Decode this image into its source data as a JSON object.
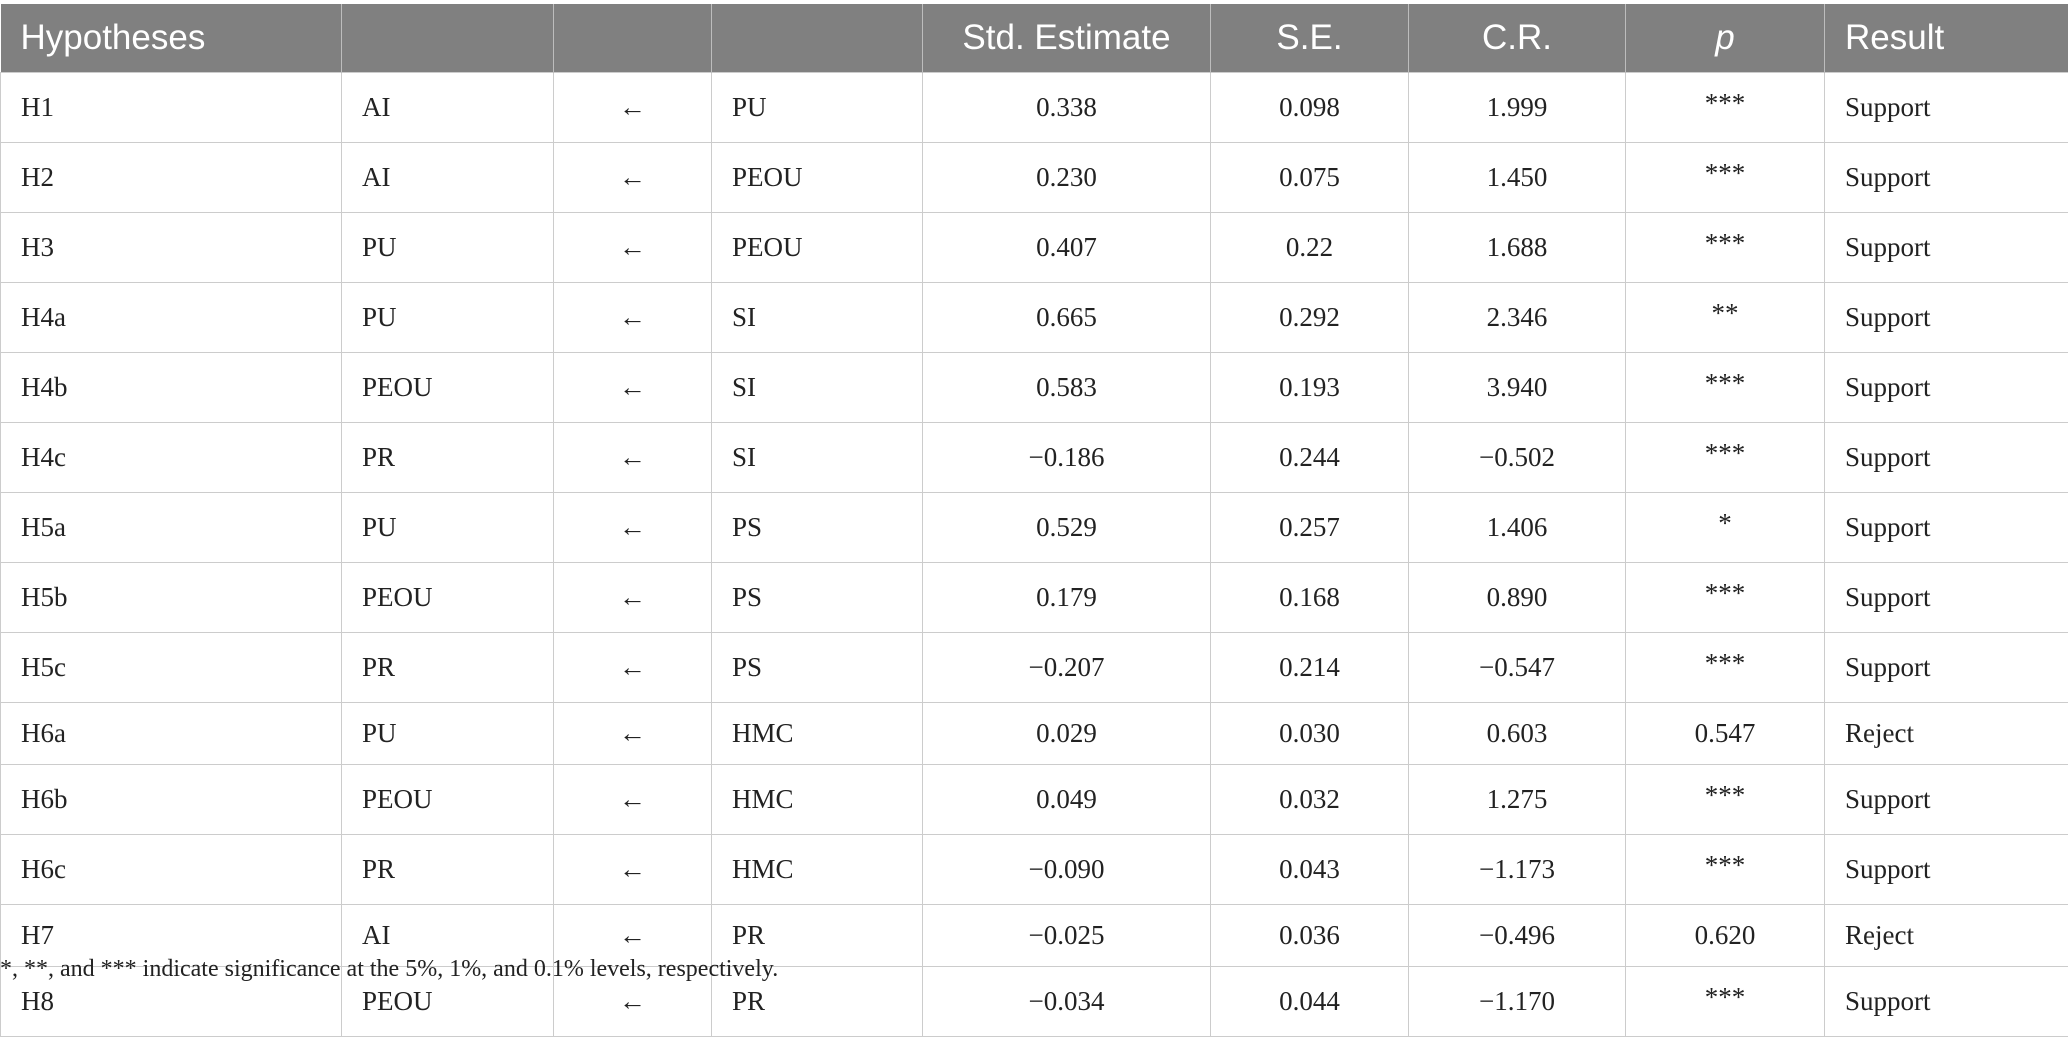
{
  "table": {
    "headers": {
      "hypotheses": "Hypotheses",
      "std_estimate": "Std. Estimate",
      "se": "S.E.",
      "cr": "C.R.",
      "p": "p",
      "result": "Result"
    },
    "rows": [
      {
        "h": "H1",
        "dep": "AI",
        "arrow": "←",
        "ind": "PU",
        "est": "0.338",
        "se": "0.098",
        "cr": "1.999",
        "p": "***",
        "result": "Support"
      },
      {
        "h": "H2",
        "dep": "AI",
        "arrow": "←",
        "ind": "PEOU",
        "est": "0.230",
        "se": "0.075",
        "cr": "1.450",
        "p": "***",
        "result": "Support"
      },
      {
        "h": "H3",
        "dep": "PU",
        "arrow": "←",
        "ind": "PEOU",
        "est": "0.407",
        "se": "0.22",
        "cr": "1.688",
        "p": "***",
        "result": "Support"
      },
      {
        "h": "H4a",
        "dep": "PU",
        "arrow": "←",
        "ind": "SI",
        "est": "0.665",
        "se": "0.292",
        "cr": "2.346",
        "p": "**",
        "result": "Support"
      },
      {
        "h": "H4b",
        "dep": "PEOU",
        "arrow": "←",
        "ind": "SI",
        "est": "0.583",
        "se": "0.193",
        "cr": "3.940",
        "p": "***",
        "result": "Support"
      },
      {
        "h": "H4c",
        "dep": "PR",
        "arrow": "←",
        "ind": "SI",
        "est": "−0.186",
        "se": "0.244",
        "cr": "−0.502",
        "p": "***",
        "result": "Support"
      },
      {
        "h": "H5a",
        "dep": "PU",
        "arrow": "←",
        "ind": "PS",
        "est": "0.529",
        "se": "0.257",
        "cr": "1.406",
        "p": "*",
        "result": "Support"
      },
      {
        "h": "H5b",
        "dep": "PEOU",
        "arrow": "←",
        "ind": "PS",
        "est": "0.179",
        "se": "0.168",
        "cr": "0.890",
        "p": "***",
        "result": "Support"
      },
      {
        "h": "H5c",
        "dep": "PR",
        "arrow": "←",
        "ind": "PS",
        "est": "−0.207",
        "se": "0.214",
        "cr": "−0.547",
        "p": "***",
        "result": "Support"
      },
      {
        "h": "H6a",
        "dep": "PU",
        "arrow": "←",
        "ind": "HMC",
        "est": "0.029",
        "se": "0.030",
        "cr": "0.603",
        "p": "0.547",
        "result": "Reject"
      },
      {
        "h": "H6b",
        "dep": "PEOU",
        "arrow": "←",
        "ind": "HMC",
        "est": "0.049",
        "se": "0.032",
        "cr": "1.275",
        "p": "***",
        "result": "Support"
      },
      {
        "h": "H6c",
        "dep": "PR",
        "arrow": "←",
        "ind": "HMC",
        "est": "−0.090",
        "se": "0.043",
        "cr": "−1.173",
        "p": "***",
        "result": "Support"
      },
      {
        "h": "H7",
        "dep": "AI",
        "arrow": "←",
        "ind": "PR",
        "est": "−0.025",
        "se": "0.036",
        "cr": "−0.496",
        "p": "0.620",
        "result": "Reject"
      },
      {
        "h": "H8",
        "dep": "PEOU",
        "arrow": "←",
        "ind": "PR",
        "est": "−0.034",
        "se": "0.044",
        "cr": "−1.170",
        "p": "***",
        "result": "Support"
      }
    ]
  },
  "footnote": "*, **, and *** indicate significance at the 5%, 1%, and 0.1% levels, respectively."
}
